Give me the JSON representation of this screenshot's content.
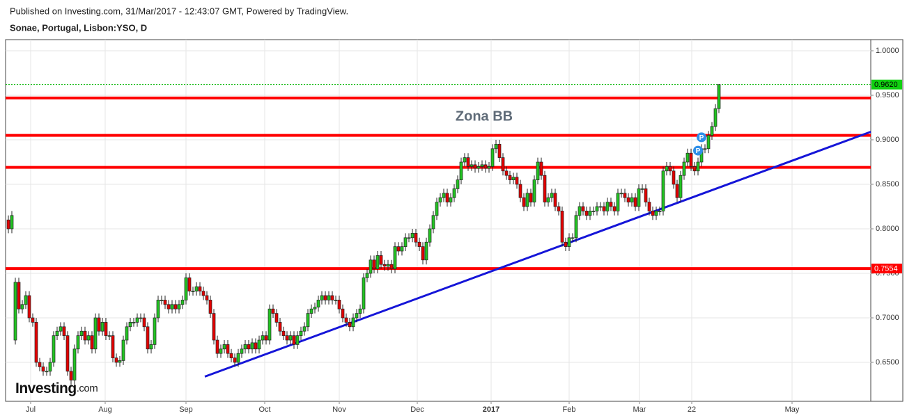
{
  "chart_data": {
    "type": "candlestick",
    "published": "Published on Investing.com, 31/Mar/2017 - 12:43:07 GMT, Powered by TradingView.",
    "title": "Sonae, Portugal, Lisbon:YSO, D",
    "logo": {
      "brand": "Investing",
      "suffix": ".com"
    },
    "annotation": "Zona BB",
    "up_color": "#22c322",
    "down_color": "#e30000",
    "grid": true,
    "xlim": [
      -0.8,
      247.6
    ],
    "ylim": [
      0.60625,
      1.0125
    ],
    "xticks": [
      {
        "value": 6.4,
        "label": "Jul"
      },
      {
        "value": 27.8,
        "label": "Aug"
      },
      {
        "value": 51,
        "label": "Sep"
      },
      {
        "value": 73.6,
        "label": "Oct"
      },
      {
        "value": 95,
        "label": "Nov"
      },
      {
        "value": 117.4,
        "label": "Dec"
      },
      {
        "value": 138.6,
        "label": "2017"
      },
      {
        "value": 161,
        "label": "Feb"
      },
      {
        "value": 181.2,
        "label": "Mar"
      },
      {
        "value": 196.2,
        "label": "22"
      },
      {
        "value": 225,
        "label": "May"
      }
    ],
    "yticks": [
      {
        "value": 0.65,
        "label": "0.6500"
      },
      {
        "value": 0.7,
        "label": "0.7000"
      },
      {
        "value": 0.75,
        "label": "0.7500"
      },
      {
        "value": 0.8,
        "label": "0.8000"
      },
      {
        "value": 0.85,
        "label": "0.8500"
      },
      {
        "value": 0.9,
        "label": "0.9000"
      },
      {
        "value": 0.95,
        "label": "0.9500"
      },
      {
        "value": 1.0,
        "label": "1.0000"
      }
    ],
    "horizontal_lines": {
      "color": "#ff0000",
      "values": [
        0.947,
        0.905,
        0.869,
        0.7554
      ]
    },
    "trendline": {
      "color": "#1515d8",
      "x": [
        56.4,
        247.6
      ],
      "y": [
        0.634,
        0.909
      ]
    },
    "last_price_line": {
      "color": "#00b400"
    },
    "price_labels": [
      {
        "value": 0.962,
        "label": "0.9620",
        "color": "#10d010"
      },
      {
        "value": 0.7554,
        "label": "0.7554",
        "color": "#ff0000"
      }
    ],
    "events": [
      {
        "x": 198,
        "label": "P"
      },
      {
        "x": 199,
        "label": "P"
      }
    ],
    "event_color": "#2f8fe8",
    "candles": {
      "open": [
        0.81,
        0.8,
        0.675,
        0.74,
        0.71,
        0.715,
        0.725,
        0.7,
        0.695,
        0.65,
        0.645,
        0.64,
        0.64,
        0.65,
        0.68,
        0.685,
        0.69,
        0.68,
        0.64,
        0.63,
        0.665,
        0.68,
        0.685,
        0.675,
        0.68,
        0.665,
        0.7,
        0.685,
        0.695,
        0.68,
        0.68,
        0.655,
        0.65,
        0.652,
        0.675,
        0.69,
        0.695,
        0.695,
        0.7,
        0.7,
        0.69,
        0.665,
        0.67,
        0.7,
        0.72,
        0.72,
        0.715,
        0.71,
        0.715,
        0.71,
        0.715,
        0.72,
        0.745,
        0.73,
        0.73,
        0.735,
        0.73,
        0.725,
        0.72,
        0.705,
        0.675,
        0.66,
        0.665,
        0.67,
        0.66,
        0.655,
        0.65,
        0.66,
        0.665,
        0.67,
        0.665,
        0.672,
        0.665,
        0.675,
        0.68,
        0.675,
        0.71,
        0.705,
        0.695,
        0.685,
        0.68,
        0.675,
        0.68,
        0.67,
        0.68,
        0.685,
        0.69,
        0.705,
        0.71,
        0.712,
        0.72,
        0.725,
        0.72,
        0.725,
        0.72,
        0.72,
        0.71,
        0.7,
        0.695,
        0.69,
        0.7,
        0.705,
        0.71,
        0.745,
        0.75,
        0.765,
        0.755,
        0.77,
        0.76,
        0.758,
        0.76,
        0.755,
        0.78,
        0.775,
        0.78,
        0.79,
        0.79,
        0.795,
        0.785,
        0.78,
        0.765,
        0.785,
        0.8,
        0.815,
        0.83,
        0.835,
        0.84,
        0.83,
        0.835,
        0.845,
        0.855,
        0.875,
        0.88,
        0.87,
        0.872,
        0.868,
        0.87,
        0.872,
        0.868,
        0.87,
        0.89,
        0.895,
        0.88,
        0.865,
        0.86,
        0.855,
        0.858,
        0.85,
        0.835,
        0.825,
        0.84,
        0.83,
        0.855,
        0.875,
        0.86,
        0.83,
        0.835,
        0.84,
        0.825,
        0.82,
        0.785,
        0.78,
        0.79,
        0.79,
        0.815,
        0.825,
        0.82,
        0.815,
        0.82,
        0.82,
        0.825,
        0.825,
        0.82,
        0.83,
        0.825,
        0.82,
        0.84,
        0.84,
        0.835,
        0.83,
        0.835,
        0.825,
        0.845,
        0.845,
        0.83,
        0.82,
        0.815,
        0.82,
        0.82,
        0.865,
        0.87,
        0.865,
        0.85,
        0.835,
        0.86,
        0.875,
        0.885,
        0.87,
        0.865,
        0.875,
        0.89,
        0.89,
        0.905,
        0.915,
        0.935
      ],
      "high": [
        0.815,
        0.82,
        0.745,
        0.745,
        0.72,
        0.73,
        0.73,
        0.705,
        0.7,
        0.655,
        0.65,
        0.645,
        0.655,
        0.685,
        0.69,
        0.695,
        0.695,
        0.685,
        0.645,
        0.67,
        0.685,
        0.69,
        0.69,
        0.685,
        0.685,
        0.705,
        0.705,
        0.7,
        0.7,
        0.685,
        0.685,
        0.66,
        0.657,
        0.68,
        0.695,
        0.7,
        0.7,
        0.705,
        0.705,
        0.705,
        0.695,
        0.675,
        0.705,
        0.725,
        0.725,
        0.725,
        0.72,
        0.72,
        0.72,
        0.72,
        0.725,
        0.75,
        0.75,
        0.735,
        0.74,
        0.74,
        0.735,
        0.73,
        0.725,
        0.71,
        0.68,
        0.67,
        0.675,
        0.675,
        0.665,
        0.66,
        0.665,
        0.67,
        0.675,
        0.675,
        0.677,
        0.677,
        0.68,
        0.685,
        0.685,
        0.715,
        0.715,
        0.71,
        0.7,
        0.69,
        0.685,
        0.685,
        0.685,
        0.685,
        0.69,
        0.695,
        0.71,
        0.715,
        0.717,
        0.725,
        0.73,
        0.73,
        0.73,
        0.73,
        0.725,
        0.725,
        0.715,
        0.705,
        0.7,
        0.705,
        0.71,
        0.715,
        0.75,
        0.755,
        0.77,
        0.77,
        0.775,
        0.775,
        0.765,
        0.765,
        0.765,
        0.785,
        0.785,
        0.785,
        0.795,
        0.795,
        0.8,
        0.8,
        0.79,
        0.785,
        0.79,
        0.805,
        0.82,
        0.835,
        0.84,
        0.845,
        0.845,
        0.84,
        0.85,
        0.86,
        0.88,
        0.885,
        0.885,
        0.877,
        0.877,
        0.875,
        0.877,
        0.877,
        0.875,
        0.895,
        0.9,
        0.9,
        0.885,
        0.87,
        0.865,
        0.863,
        0.863,
        0.855,
        0.84,
        0.845,
        0.845,
        0.86,
        0.88,
        0.88,
        0.865,
        0.84,
        0.845,
        0.845,
        0.83,
        0.825,
        0.79,
        0.795,
        0.795,
        0.82,
        0.83,
        0.83,
        0.825,
        0.825,
        0.825,
        0.83,
        0.83,
        0.83,
        0.835,
        0.835,
        0.83,
        0.845,
        0.845,
        0.845,
        0.84,
        0.84,
        0.84,
        0.85,
        0.85,
        0.85,
        0.835,
        0.825,
        0.825,
        0.825,
        0.87,
        0.875,
        0.875,
        0.87,
        0.855,
        0.865,
        0.88,
        0.89,
        0.89,
        0.875,
        0.88,
        0.895,
        0.895,
        0.91,
        0.92,
        0.94,
        0.962
      ],
      "low": [
        0.795,
        0.795,
        0.67,
        0.705,
        0.705,
        0.71,
        0.695,
        0.69,
        0.645,
        0.64,
        0.635,
        0.635,
        0.635,
        0.645,
        0.675,
        0.68,
        0.675,
        0.635,
        0.625,
        0.625,
        0.66,
        0.675,
        0.67,
        0.67,
        0.66,
        0.66,
        0.68,
        0.68,
        0.675,
        0.675,
        0.65,
        0.645,
        0.645,
        0.647,
        0.67,
        0.685,
        0.69,
        0.69,
        0.695,
        0.685,
        0.66,
        0.66,
        0.665,
        0.695,
        0.715,
        0.71,
        0.705,
        0.705,
        0.705,
        0.705,
        0.71,
        0.715,
        0.725,
        0.725,
        0.725,
        0.725,
        0.72,
        0.715,
        0.7,
        0.67,
        0.655,
        0.655,
        0.66,
        0.655,
        0.65,
        0.645,
        0.645,
        0.655,
        0.66,
        0.66,
        0.66,
        0.66,
        0.66,
        0.67,
        0.67,
        0.67,
        0.7,
        0.69,
        0.68,
        0.675,
        0.67,
        0.67,
        0.665,
        0.665,
        0.675,
        0.68,
        0.685,
        0.7,
        0.705,
        0.707,
        0.715,
        0.715,
        0.715,
        0.715,
        0.715,
        0.705,
        0.695,
        0.69,
        0.685,
        0.685,
        0.695,
        0.7,
        0.705,
        0.74,
        0.745,
        0.75,
        0.75,
        0.755,
        0.753,
        0.753,
        0.75,
        0.75,
        0.77,
        0.77,
        0.775,
        0.785,
        0.785,
        0.78,
        0.775,
        0.76,
        0.76,
        0.78,
        0.795,
        0.81,
        0.825,
        0.83,
        0.825,
        0.825,
        0.83,
        0.84,
        0.85,
        0.87,
        0.865,
        0.865,
        0.863,
        0.863,
        0.865,
        0.863,
        0.863,
        0.865,
        0.885,
        0.875,
        0.86,
        0.855,
        0.85,
        0.85,
        0.845,
        0.83,
        0.82,
        0.82,
        0.825,
        0.825,
        0.85,
        0.855,
        0.825,
        0.825,
        0.83,
        0.82,
        0.815,
        0.78,
        0.775,
        0.775,
        0.785,
        0.785,
        0.81,
        0.815,
        0.81,
        0.81,
        0.815,
        0.815,
        0.82,
        0.815,
        0.815,
        0.82,
        0.815,
        0.815,
        0.835,
        0.83,
        0.825,
        0.825,
        0.82,
        0.82,
        0.84,
        0.825,
        0.815,
        0.81,
        0.81,
        0.815,
        0.815,
        0.86,
        0.86,
        0.845,
        0.83,
        0.83,
        0.855,
        0.87,
        0.865,
        0.86,
        0.86,
        0.87,
        0.885,
        0.885,
        0.9,
        0.91,
        0.93
      ],
      "close": [
        0.8,
        0.815,
        0.74,
        0.71,
        0.715,
        0.725,
        0.7,
        0.695,
        0.65,
        0.645,
        0.64,
        0.64,
        0.65,
        0.68,
        0.685,
        0.69,
        0.68,
        0.64,
        0.63,
        0.665,
        0.68,
        0.685,
        0.675,
        0.68,
        0.665,
        0.7,
        0.685,
        0.695,
        0.68,
        0.68,
        0.655,
        0.65,
        0.652,
        0.675,
        0.69,
        0.695,
        0.695,
        0.7,
        0.7,
        0.69,
        0.665,
        0.67,
        0.7,
        0.72,
        0.72,
        0.715,
        0.71,
        0.715,
        0.71,
        0.715,
        0.72,
        0.745,
        0.73,
        0.73,
        0.735,
        0.73,
        0.725,
        0.72,
        0.705,
        0.675,
        0.66,
        0.665,
        0.67,
        0.66,
        0.655,
        0.65,
        0.66,
        0.665,
        0.67,
        0.665,
        0.672,
        0.665,
        0.675,
        0.68,
        0.675,
        0.71,
        0.705,
        0.695,
        0.685,
        0.68,
        0.675,
        0.68,
        0.67,
        0.68,
        0.685,
        0.69,
        0.705,
        0.71,
        0.712,
        0.72,
        0.725,
        0.72,
        0.725,
        0.72,
        0.72,
        0.71,
        0.7,
        0.695,
        0.69,
        0.7,
        0.705,
        0.71,
        0.745,
        0.75,
        0.765,
        0.755,
        0.77,
        0.76,
        0.758,
        0.76,
        0.755,
        0.78,
        0.775,
        0.78,
        0.79,
        0.79,
        0.795,
        0.785,
        0.78,
        0.765,
        0.785,
        0.8,
        0.815,
        0.83,
        0.835,
        0.84,
        0.83,
        0.835,
        0.845,
        0.855,
        0.875,
        0.88,
        0.87,
        0.872,
        0.868,
        0.87,
        0.872,
        0.868,
        0.87,
        0.89,
        0.895,
        0.88,
        0.865,
        0.86,
        0.855,
        0.858,
        0.85,
        0.835,
        0.825,
        0.84,
        0.83,
        0.855,
        0.875,
        0.86,
        0.83,
        0.835,
        0.84,
        0.825,
        0.82,
        0.785,
        0.78,
        0.79,
        0.79,
        0.815,
        0.825,
        0.82,
        0.815,
        0.82,
        0.82,
        0.825,
        0.825,
        0.82,
        0.83,
        0.825,
        0.82,
        0.84,
        0.84,
        0.835,
        0.83,
        0.835,
        0.825,
        0.845,
        0.845,
        0.83,
        0.82,
        0.815,
        0.82,
        0.82,
        0.865,
        0.87,
        0.865,
        0.85,
        0.835,
        0.86,
        0.875,
        0.885,
        0.87,
        0.865,
        0.875,
        0.89,
        0.89,
        0.905,
        0.915,
        0.935,
        0.962
      ]
    }
  }
}
